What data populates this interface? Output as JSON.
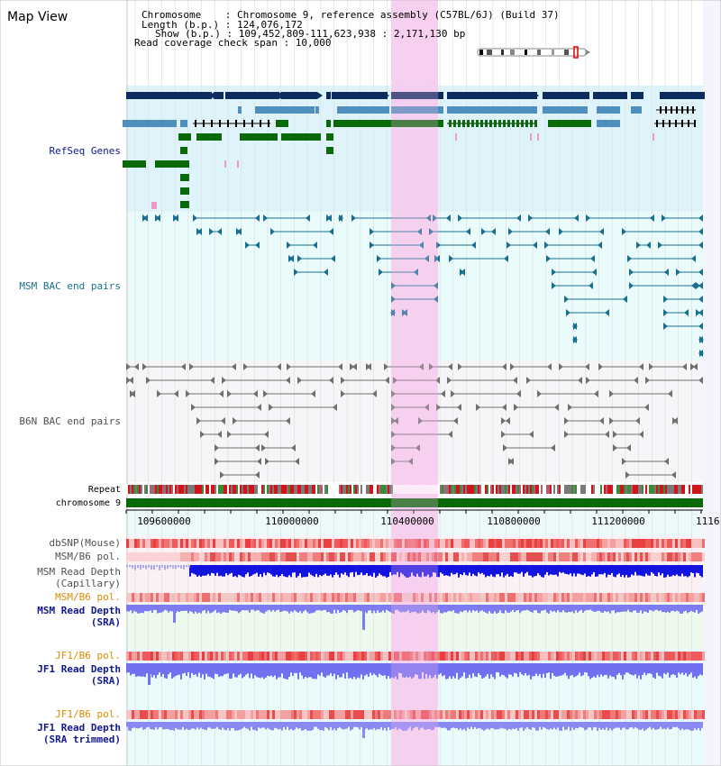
{
  "page": {
    "title": "Map View"
  },
  "header": {
    "line1": "Chromosome    : Chromosome 9, reference assembly (C57BL/6J) (Build 37)",
    "line2": "Length (b.p.) : 124,076,172",
    "line3": "Show (b.p.) : 109,452,809-111,623,938 : 2,171,130 bp",
    "line4": "Read coverage check span : 10,000"
  },
  "tracks": {
    "refseq": "RefSeq Genes",
    "msm_bac": "MSM BAC end pairs",
    "b6n_bac": "B6N BAC end pairs",
    "repeat": "Repeat",
    "chromosome": "chromosome 9",
    "dbsnp": "dbSNP(Mouse)",
    "msm_b6_pol_1": "MSM/B6 pol.",
    "msm_read_depth_cap_1": "MSM Read Depth",
    "msm_read_depth_cap_2": "(Capillary)",
    "msm_b6_pol_2": "MSM/B6 pol.",
    "msm_read_depth_sra_1": "MSM Read Depth",
    "msm_read_depth_sra_2": "(SRA)",
    "jf1_b6_pol_1": "JF1/B6 pol.",
    "jf1_read_depth_sra_1": "JF1 Read Depth",
    "jf1_read_depth_sra_2": "(SRA)",
    "jf1_b6_pol_2": "JF1/B6 pol.",
    "jf1_read_depth_trim_1": "JF1 Read Depth",
    "jf1_read_depth_trim_2": "(SRA trimmed)"
  },
  "axis": {
    "ticks": [
      "109600000",
      "110000000",
      "110400000",
      "110800000",
      "111200000",
      "1116"
    ]
  },
  "colors": {
    "refseq_bg": "#dff4fa",
    "bac_bg": "#eafbfb",
    "highlight": "#f8d4f0",
    "gene_dark": "#0d2d5e",
    "gene_mid": "#4f8fbd",
    "gene_green": "#0a6a0a",
    "msm_pair": "#1a6f8f",
    "b6n_pair": "#707070",
    "label_blue": "#101890",
    "label_teal": "#1a6f8f",
    "label_orange": "#e08a00",
    "label_gray": "#505050"
  }
}
